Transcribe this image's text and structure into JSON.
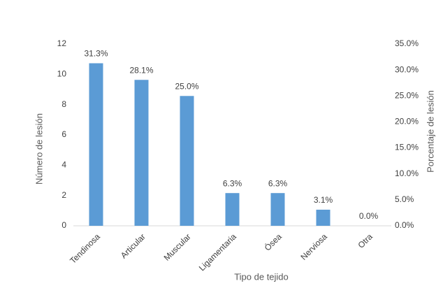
{
  "chart_data": {
    "type": "bar",
    "categories": [
      "Tendinosa",
      "Articular",
      "Muscular",
      "Ligamentaria",
      "Ósea",
      "Nerviosa",
      "Otra"
    ],
    "series": [
      {
        "color": "#5b9bd5",
        "axis": "y2",
        "values": [
          31.3,
          28.1,
          25.0,
          6.3,
          6.3,
          3.1,
          0.0
        ],
        "value_labels": [
          "31.3%",
          "28.1%",
          "25.0%",
          "6.3%",
          "6.3%",
          "3.1%",
          "0.0%"
        ]
      }
    ],
    "x_label": "Tipo de tejido",
    "y_label": "Número de lesión",
    "y2_label": "Porcentaje de lesión",
    "ylim": [
      0,
      12
    ],
    "yticks": [
      0,
      2,
      4,
      6,
      8,
      10,
      12
    ],
    "y2lim": [
      0,
      35
    ],
    "y2ticks": [
      {
        "value": 0,
        "label": "0.0%"
      },
      {
        "value": 5,
        "label": "5.0%"
      },
      {
        "value": 10,
        "label": "10.0%"
      },
      {
        "value": 15,
        "label": "15.0%"
      },
      {
        "value": 20,
        "label": "20.0%"
      },
      {
        "value": 25,
        "label": "25.0%"
      },
      {
        "value": 30,
        "label": "30.0%"
      },
      {
        "value": 35,
        "label": "35.0%"
      }
    ],
    "grid": false
  }
}
